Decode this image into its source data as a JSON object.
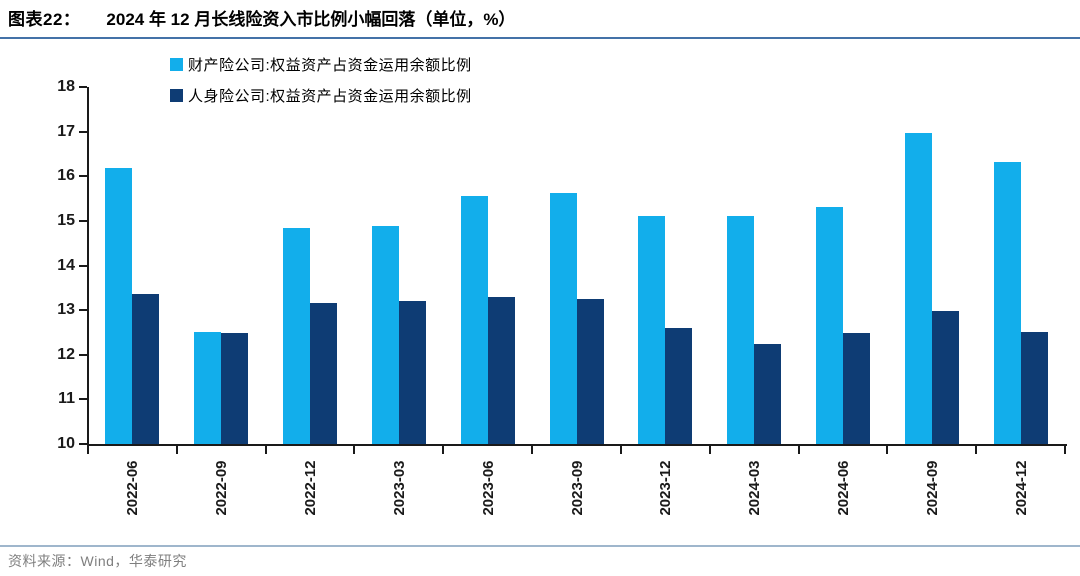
{
  "header": {
    "tag": "图表22：",
    "title": "2024 年 12 月长线险资入市比例小幅回落（单位，%）"
  },
  "chart_data": {
    "type": "bar",
    "categories": [
      "2022-06",
      "2022-09",
      "2022-12",
      "2023-03",
      "2023-06",
      "2023-09",
      "2023-12",
      "2024-03",
      "2024-06",
      "2024-09",
      "2024-12"
    ],
    "series": [
      {
        "name": "财产险公司:权益资产占资金运用余额比例",
        "color": "#12AEEB",
        "values": [
          16.19,
          12.5,
          14.83,
          14.88,
          15.55,
          15.63,
          15.1,
          15.12,
          15.31,
          16.96,
          16.33
        ]
      },
      {
        "name": "人身险公司:权益资产占资金运用余额比例",
        "color": "#0E3C74",
        "values": [
          13.37,
          12.49,
          13.16,
          13.21,
          13.3,
          13.25,
          12.59,
          12.25,
          12.48,
          12.98,
          12.5
        ]
      }
    ],
    "ylim": [
      10,
      18
    ],
    "ytick_step": 1,
    "grid": false,
    "legend_position": "top-left-stacked",
    "unit": "%"
  },
  "footer": {
    "source": "资料来源：Wind，华泰研究"
  },
  "colors": {
    "title_rule": "#4472A8",
    "axis": "#1A1A1A",
    "footer_rule": "#9FB6CC",
    "footer_text": "#7F7F7F"
  }
}
